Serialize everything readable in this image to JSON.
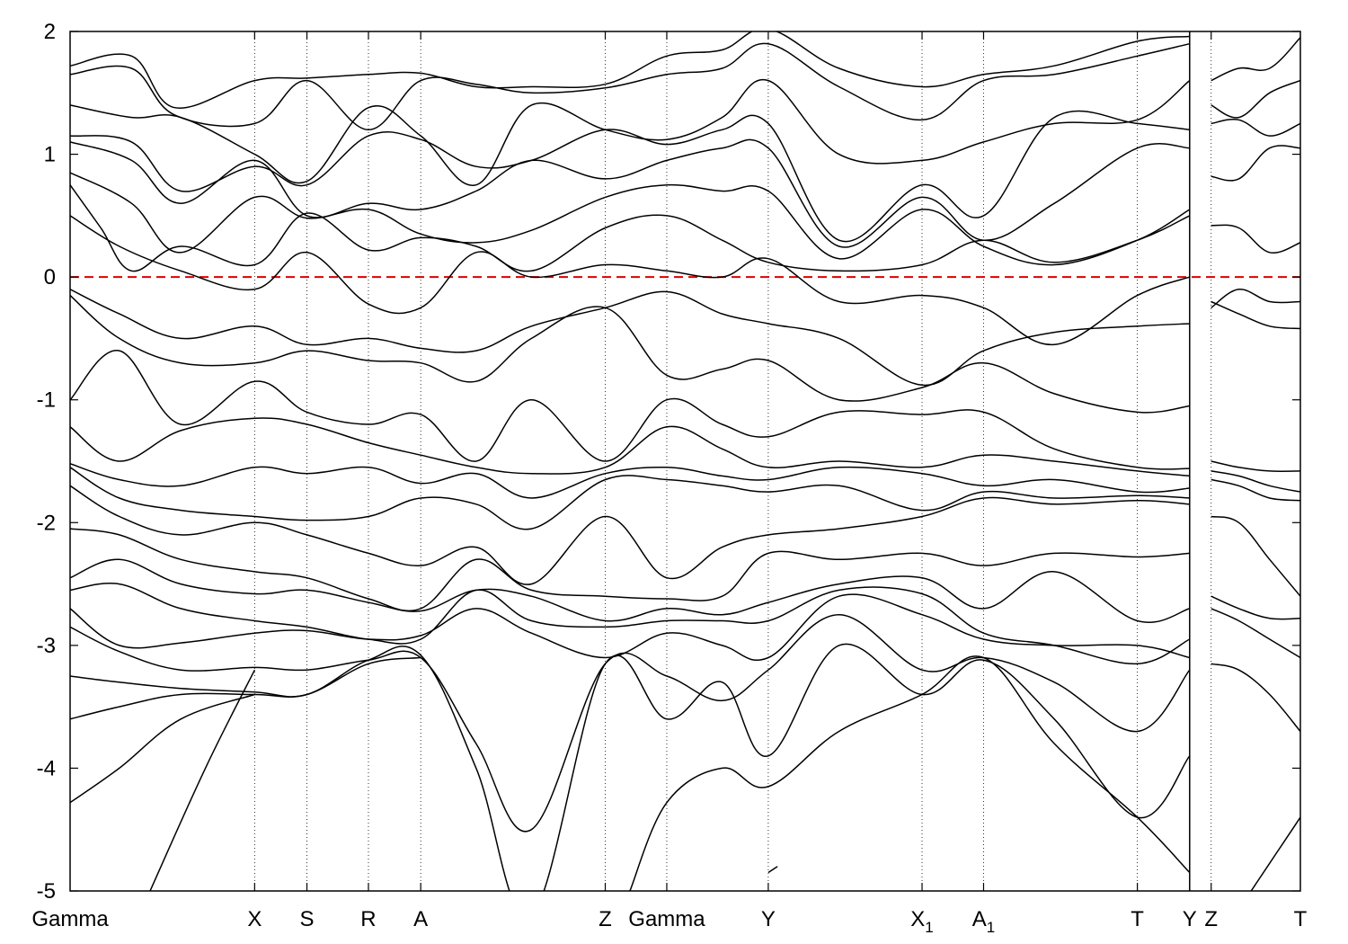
{
  "chart_data": {
    "type": "line",
    "title": "",
    "xlabel": "",
    "ylabel": "",
    "ylim": [
      -5,
      2
    ],
    "yticks": [
      -5,
      -4,
      -3,
      -2,
      -1,
      0,
      1,
      2
    ],
    "xlim": [
      0,
      20
    ],
    "kpoints": [
      {
        "label": "Gamma",
        "x": 0
      },
      {
        "label": "X",
        "x": 3.0
      },
      {
        "label": "S",
        "x": 3.85
      },
      {
        "label": "R",
        "x": 4.85
      },
      {
        "label": "A",
        "x": 5.7
      },
      {
        "label": "Z",
        "x": 8.7
      },
      {
        "label": "Gamma",
        "x": 9.7
      },
      {
        "label": "Y",
        "x": 11.35
      },
      {
        "label": "X",
        "sub": "1",
        "x": 13.85
      },
      {
        "label": "A",
        "sub": "1",
        "x": 14.85
      },
      {
        "label": "T",
        "x": 17.35
      },
      {
        "label": "Y",
        "x": 18.2
      },
      {
        "label": "Z",
        "x": 18.55
      },
      {
        "label": "T",
        "x": 20.0
      }
    ],
    "segment_break_x": 18.2,
    "fermi_level": 0,
    "colors": {
      "bands": "#000000",
      "fermi": "#dd0000",
      "kline": "#000000"
    },
    "series": [
      {
        "x": [
          0,
          1.0,
          1.7,
          3.0,
          3.85,
          4.85,
          5.7,
          6.6,
          7.5,
          8.7,
          9.7,
          10.6,
          11.35,
          12.5,
          13.85,
          14.85,
          16.0,
          17.35,
          18.2
        ],
        "y": [
          1.72,
          1.8,
          1.38,
          1.6,
          1.62,
          1.65,
          1.66,
          1.55,
          1.55,
          1.57,
          1.8,
          1.85,
          2.02,
          1.7,
          1.55,
          1.65,
          1.72,
          1.92,
          1.96
        ]
      },
      {
        "x": [
          0,
          1.0,
          1.7,
          3.0,
          3.85,
          4.85,
          5.7,
          6.6,
          7.5,
          8.7,
          9.7,
          10.6,
          11.35,
          12.5,
          13.85,
          14.85,
          16.0,
          17.35,
          18.2
        ],
        "y": [
          1.65,
          1.7,
          1.32,
          1.25,
          1.6,
          1.2,
          1.6,
          1.57,
          1.5,
          1.54,
          1.65,
          1.7,
          1.9,
          1.55,
          1.28,
          1.6,
          1.65,
          1.8,
          1.9
        ]
      },
      {
        "x": [
          0,
          1.0,
          1.8,
          3.0,
          3.85,
          4.85,
          5.7,
          6.6,
          7.5,
          8.7,
          9.7,
          10.6,
          11.35,
          12.5,
          13.85,
          14.85,
          16.0,
          17.35,
          18.2
        ],
        "y": [
          1.4,
          1.3,
          1.3,
          1.0,
          0.78,
          1.38,
          1.15,
          0.75,
          1.4,
          1.2,
          1.12,
          1.3,
          1.6,
          1.0,
          0.95,
          1.1,
          1.25,
          1.28,
          1.6
        ]
      },
      {
        "x": [
          0,
          1.0,
          1.8,
          3.0,
          3.85,
          4.85,
          5.7,
          6.6,
          7.5,
          8.7,
          9.7,
          10.6,
          11.35,
          12.5,
          13.85,
          14.85,
          16.0,
          17.35,
          18.2
        ],
        "y": [
          1.15,
          1.1,
          0.7,
          0.9,
          0.75,
          1.15,
          1.12,
          0.9,
          0.95,
          1.2,
          1.08,
          1.2,
          1.25,
          0.3,
          0.75,
          0.5,
          1.3,
          1.25,
          1.2
        ]
      },
      {
        "x": [
          0,
          1.0,
          1.8,
          3.0,
          3.85,
          4.85,
          5.7,
          6.6,
          7.5,
          8.7,
          9.7,
          10.6,
          11.35,
          12.5,
          13.85,
          14.85,
          16.0,
          17.35,
          18.2
        ],
        "y": [
          1.1,
          0.95,
          0.6,
          0.95,
          0.5,
          0.6,
          0.55,
          0.7,
          0.95,
          0.8,
          0.95,
          1.05,
          1.05,
          0.25,
          0.65,
          0.3,
          0.6,
          1.05,
          1.05
        ]
      },
      {
        "x": [
          0,
          1.0,
          1.8,
          3.0,
          3.85,
          4.85,
          5.7,
          6.6,
          7.5,
          8.7,
          9.7,
          10.6,
          11.35,
          12.5,
          13.85,
          14.85,
          16.0,
          17.35,
          18.2
        ],
        "y": [
          0.85,
          0.6,
          0.2,
          0.65,
          0.48,
          0.55,
          0.35,
          0.28,
          0.38,
          0.65,
          0.75,
          0.7,
          0.7,
          0.15,
          0.55,
          0.25,
          0.1,
          0.3,
          0.55
        ]
      },
      {
        "x": [
          0,
          0.5,
          1.0,
          1.8,
          3.0,
          3.85,
          4.85,
          5.7,
          6.6,
          7.5,
          8.7,
          9.7,
          10.6,
          11.35,
          12.5,
          13.85,
          14.85,
          16.0,
          17.35,
          18.2
        ],
        "y": [
          0.75,
          0.4,
          0.05,
          0.25,
          0.1,
          0.52,
          0.22,
          0.32,
          0.25,
          0.05,
          0.4,
          0.5,
          0.3,
          0.12,
          0.05,
          0.1,
          0.3,
          0.12,
          0.3,
          0.5
        ]
      },
      {
        "x": [
          0,
          0.8,
          1.8,
          3.0,
          3.85,
          4.85,
          5.7,
          6.6,
          7.5,
          8.7,
          9.7,
          10.6,
          11.35,
          12.5,
          13.85,
          14.85,
          16.0,
          17.35,
          18.2
        ],
        "y": [
          0.5,
          0.25,
          0.05,
          -0.1,
          0.2,
          -0.22,
          -0.25,
          0.2,
          0.0,
          0.1,
          0.05,
          0.0,
          0.15,
          -0.2,
          -0.15,
          -0.25,
          -0.55,
          -0.15,
          0.0
        ]
      },
      {
        "x": [
          0,
          0.8,
          1.8,
          3.0,
          3.85,
          4.85,
          5.7,
          6.6,
          7.5,
          8.7,
          9.7,
          10.6,
          11.35,
          12.5,
          13.85,
          14.85,
          16.0,
          17.35,
          18.2
        ],
        "y": [
          -0.1,
          -0.3,
          -0.5,
          -0.4,
          -0.55,
          -0.5,
          -0.58,
          -0.6,
          -0.4,
          -0.25,
          -0.12,
          -0.3,
          -0.38,
          -0.5,
          -0.88,
          -0.6,
          -0.45,
          -0.4,
          -0.38
        ]
      },
      {
        "x": [
          0,
          0.8,
          1.8,
          3.0,
          3.85,
          4.85,
          5.7,
          6.6,
          7.5,
          8.7,
          9.7,
          10.6,
          11.35,
          12.5,
          13.85,
          14.85,
          16.0,
          17.35,
          18.2
        ],
        "y": [
          -0.15,
          -0.5,
          -0.7,
          -0.7,
          -0.6,
          -0.68,
          -0.7,
          -0.85,
          -0.5,
          -0.25,
          -0.8,
          -0.75,
          -0.68,
          -1.0,
          -0.9,
          -0.7,
          -0.95,
          -1.1,
          -1.05
        ]
      },
      {
        "x": [
          0,
          0.8,
          1.8,
          3.0,
          3.85,
          4.85,
          5.7,
          6.6,
          7.5,
          8.7,
          9.7,
          10.6,
          11.35,
          12.5,
          13.85,
          14.85,
          16.0,
          17.35,
          18.2
        ],
        "y": [
          -1.0,
          -0.6,
          -1.2,
          -0.85,
          -1.1,
          -1.2,
          -1.12,
          -1.5,
          -1.0,
          -1.5,
          -1.0,
          -1.2,
          -1.3,
          -1.1,
          -1.12,
          -1.1,
          -1.4,
          -1.55,
          -1.56
        ]
      },
      {
        "x": [
          0,
          0.8,
          1.8,
          3.0,
          3.85,
          4.85,
          5.7,
          6.6,
          7.5,
          8.7,
          9.7,
          10.6,
          11.35,
          12.5,
          13.85,
          14.85,
          16.0,
          17.35,
          18.2
        ],
        "y": [
          -1.22,
          -1.5,
          -1.25,
          -1.15,
          -1.2,
          -1.35,
          -1.45,
          -1.55,
          -1.6,
          -1.55,
          -1.22,
          -1.4,
          -1.55,
          -1.5,
          -1.55,
          -1.45,
          -1.5,
          -1.58,
          -1.62
        ]
      },
      {
        "x": [
          0,
          0.8,
          1.8,
          3.0,
          3.85,
          4.85,
          5.7,
          6.6,
          7.5,
          8.7,
          9.7,
          10.6,
          11.35,
          12.5,
          13.85,
          14.85,
          16.0,
          17.35,
          18.2
        ],
        "y": [
          -1.52,
          -1.65,
          -1.7,
          -1.55,
          -1.6,
          -1.55,
          -1.68,
          -1.6,
          -1.8,
          -1.6,
          -1.55,
          -1.62,
          -1.65,
          -1.55,
          -1.6,
          -1.7,
          -1.65,
          -1.75,
          -1.72
        ]
      },
      {
        "x": [
          0,
          0.8,
          1.8,
          3.0,
          3.85,
          4.85,
          5.7,
          6.6,
          7.5,
          8.7,
          9.7,
          10.6,
          11.35,
          12.5,
          13.85,
          14.85,
          16.0,
          17.35,
          18.2
        ],
        "y": [
          -1.55,
          -1.8,
          -1.9,
          -1.95,
          -1.98,
          -1.95,
          -1.8,
          -1.85,
          -2.05,
          -1.65,
          -1.65,
          -1.7,
          -1.75,
          -1.7,
          -1.9,
          -1.75,
          -1.8,
          -1.78,
          -1.8
        ]
      },
      {
        "x": [
          0,
          0.8,
          1.8,
          3.0,
          3.85,
          4.85,
          5.7,
          6.6,
          7.5,
          8.7,
          9.7,
          10.6,
          11.35,
          12.5,
          13.85,
          14.85,
          16.0,
          17.35,
          18.2
        ],
        "y": [
          -1.7,
          -1.95,
          -2.1,
          -2.0,
          -2.1,
          -2.25,
          -2.35,
          -2.2,
          -2.5,
          -1.95,
          -2.45,
          -2.2,
          -2.1,
          -2.05,
          -1.95,
          -1.8,
          -1.85,
          -1.82,
          -1.85
        ]
      },
      {
        "x": [
          0,
          0.8,
          1.8,
          3.0,
          3.85,
          4.85,
          5.7,
          6.6,
          7.5,
          8.7,
          9.7,
          10.6,
          11.35,
          12.5,
          13.85,
          14.85,
          16.0,
          17.35,
          18.2
        ],
        "y": [
          -2.05,
          -2.1,
          -2.3,
          -2.4,
          -2.45,
          -2.62,
          -2.7,
          -2.3,
          -2.55,
          -2.6,
          -2.62,
          -2.6,
          -2.25,
          -2.3,
          -2.25,
          -2.35,
          -2.25,
          -2.28,
          -2.25
        ]
      },
      {
        "x": [
          0,
          0.8,
          1.8,
          3.0,
          3.85,
          4.85,
          5.7,
          6.6,
          7.5,
          8.7,
          9.7,
          10.6,
          11.35,
          12.5,
          13.85,
          14.85,
          16.0,
          17.35,
          18.2
        ],
        "y": [
          -2.45,
          -2.3,
          -2.5,
          -2.58,
          -2.55,
          -2.65,
          -2.72,
          -2.55,
          -2.6,
          -2.8,
          -2.7,
          -2.75,
          -2.65,
          -2.5,
          -2.45,
          -2.7,
          -2.4,
          -2.8,
          -2.7
        ]
      },
      {
        "x": [
          0,
          0.8,
          1.8,
          3.0,
          3.85,
          4.85,
          5.7,
          6.6,
          7.5,
          8.7,
          9.7,
          10.6,
          11.35,
          12.5,
          13.85,
          14.85,
          16.0,
          17.35,
          18.2
        ],
        "y": [
          -2.55,
          -2.5,
          -2.7,
          -2.8,
          -2.85,
          -2.95,
          -2.95,
          -2.55,
          -2.8,
          -2.85,
          -2.8,
          -2.8,
          -2.8,
          -2.55,
          -2.58,
          -2.9,
          -3.0,
          -3.15,
          -2.95
        ]
      },
      {
        "x": [
          0,
          0.8,
          1.8,
          3.0,
          3.85,
          4.85,
          5.7,
          6.6,
          7.5,
          8.7,
          9.7,
          10.6,
          11.35,
          12.5,
          13.85,
          14.85,
          16.0,
          17.35,
          18.2
        ],
        "y": [
          -2.7,
          -3.0,
          -2.98,
          -2.9,
          -2.88,
          -2.95,
          -2.92,
          -2.7,
          -2.9,
          -3.1,
          -2.9,
          -3.0,
          -3.1,
          -2.6,
          -2.75,
          -2.95,
          -3.0,
          -3.0,
          -3.1
        ]
      },
      {
        "x": [
          0,
          0.8,
          1.8,
          3.0,
          3.85,
          4.85,
          5.7,
          6.6,
          7.5,
          8.7,
          9.7,
          10.6,
          11.35,
          12.5,
          13.85,
          14.85,
          16.0,
          17.35,
          18.2
        ],
        "y": [
          -2.85,
          -3.05,
          -3.2,
          -3.18,
          -3.2,
          -3.12,
          -3.1,
          -3.8,
          -4.5,
          -3.15,
          -3.25,
          -3.45,
          -3.2,
          -2.75,
          -3.2,
          -3.1,
          -3.3,
          -3.7,
          -3.2
        ]
      },
      {
        "x": [
          0,
          0.8,
          1.8,
          3.0,
          3.85,
          4.85,
          5.7,
          6.6,
          7.5,
          8.7,
          9.7,
          10.6,
          11.35,
          12.5,
          13.85,
          14.85,
          16.0,
          17.35,
          18.2
        ],
        "y": [
          -3.25,
          -3.3,
          -3.35,
          -3.38,
          -3.4,
          -3.12,
          -3.08,
          -4.0,
          -5.2,
          -3.15,
          -3.6,
          -3.3,
          -3.9,
          -3.0,
          -3.4,
          -3.12,
          -3.6,
          -4.4,
          -3.9
        ]
      },
      {
        "x": [
          0,
          0.8,
          1.8,
          3.0,
          3.85,
          4.85,
          5.7
        ],
        "y": [
          -3.6,
          -3.5,
          -3.4,
          -3.4,
          -3.4,
          -3.15,
          -3.1
        ]
      },
      {
        "x": [
          0,
          0.8,
          1.8,
          3.0
        ],
        "y": [
          -4.28,
          -4.0,
          -3.6,
          -3.4
        ]
      },
      {
        "x": [
          1.3,
          2.2,
          3.0
        ],
        "y": [
          -5.0,
          -4.0,
          -3.2
        ]
      },
      {
        "x": [
          9.1,
          9.7,
          10.6,
          11.35,
          12.5,
          13.85,
          14.85,
          16.0,
          17.35,
          18.2
        ],
        "y": [
          -5.0,
          -4.28,
          -4.0,
          -4.15,
          -3.7,
          -3.4,
          -3.1,
          -3.8,
          -4.4,
          -4.85
        ]
      },
      {
        "x": [
          11.35,
          11.5
        ],
        "y": [
          -4.85,
          -4.8
        ]
      },
      {
        "x": [
          18.55,
          19.0,
          19.5,
          20.0
        ],
        "y": [
          1.6,
          1.7,
          1.7,
          1.95
        ]
      },
      {
        "x": [
          18.55,
          19.0,
          19.5,
          20.0
        ],
        "y": [
          1.4,
          1.3,
          1.5,
          1.6
        ]
      },
      {
        "x": [
          18.55,
          19.0,
          19.5,
          20.0
        ],
        "y": [
          1.25,
          1.28,
          1.15,
          1.25
        ]
      },
      {
        "x": [
          18.55,
          19.0,
          19.5,
          20.0
        ],
        "y": [
          0.82,
          0.8,
          1.05,
          1.05
        ]
      },
      {
        "x": [
          18.55,
          19.0,
          19.5,
          20.0
        ],
        "y": [
          0.42,
          0.4,
          0.2,
          0.28
        ]
      },
      {
        "x": [
          18.55,
          19.0,
          19.5,
          20.0
        ],
        "y": [
          -0.25,
          -0.1,
          -0.2,
          -0.2
        ]
      },
      {
        "x": [
          18.55,
          19.0,
          19.5,
          20.0
        ],
        "y": [
          -0.2,
          -0.3,
          -0.4,
          -0.42
        ]
      },
      {
        "x": [
          18.55,
          19.0,
          19.5,
          20.0
        ],
        "y": [
          -1.5,
          -1.55,
          -1.58,
          -1.58
        ]
      },
      {
        "x": [
          18.55,
          19.0,
          19.5,
          20.0
        ],
        "y": [
          -1.58,
          -1.62,
          -1.7,
          -1.75
        ]
      },
      {
        "x": [
          18.55,
          19.0,
          19.5,
          20.0
        ],
        "y": [
          -1.65,
          -1.7,
          -1.8,
          -1.82
        ]
      },
      {
        "x": [
          18.55,
          19.0,
          19.5,
          20.0
        ],
        "y": [
          -1.95,
          -2.0,
          -2.3,
          -2.6
        ]
      },
      {
        "x": [
          18.55,
          19.0,
          19.5,
          20.0
        ],
        "y": [
          -2.6,
          -2.7,
          -2.78,
          -2.78
        ]
      },
      {
        "x": [
          18.55,
          19.0,
          19.5,
          20.0
        ],
        "y": [
          -2.7,
          -2.8,
          -2.95,
          -3.1
        ]
      },
      {
        "x": [
          18.55,
          19.0,
          19.5,
          20.0
        ],
        "y": [
          -3.15,
          -3.2,
          -3.4,
          -3.7
        ]
      },
      {
        "x": [
          19.2,
          19.6,
          20.0
        ],
        "y": [
          -5.0,
          -4.7,
          -4.4
        ]
      }
    ]
  }
}
